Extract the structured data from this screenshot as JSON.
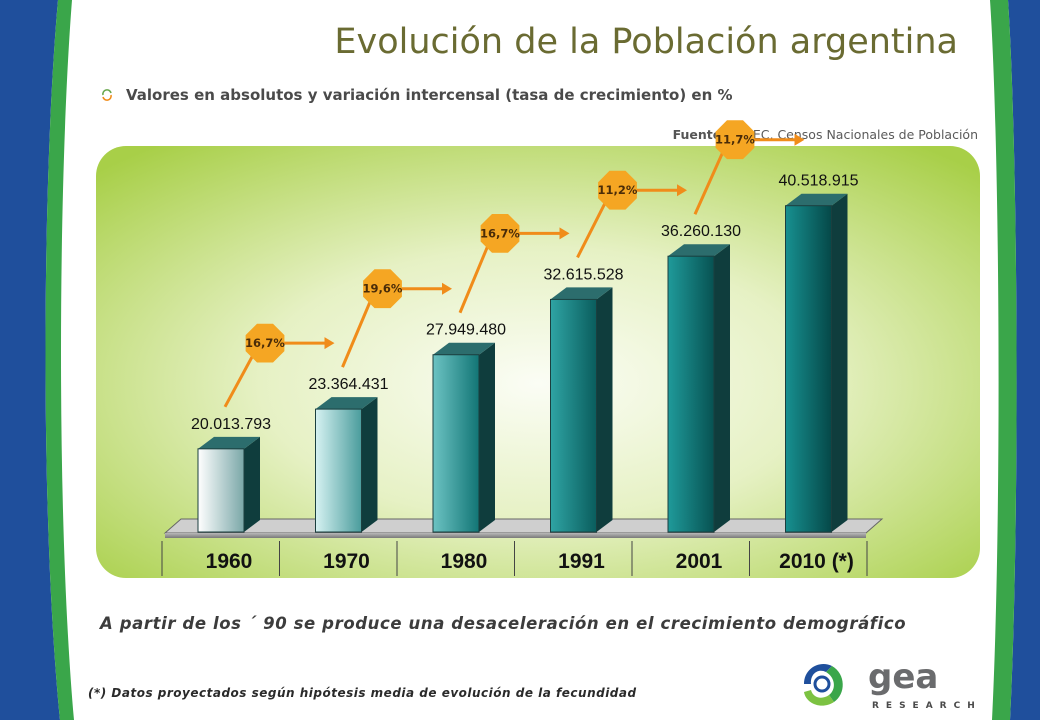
{
  "title": "Evolución de la Población argentina",
  "subtitle": "Valores en absolutos y variación intercensal (tasa de crecimiento) en %",
  "source": {
    "prefix": "Fuente:",
    "text": "INDEC, Censos Nacionales de Población"
  },
  "conclusion": "A partir de los ´ 90 se produce una desaceleración en el crecimiento demográfico",
  "footnote": "(*) Datos proyectados según hipótesis media de evolución de la fecundidad",
  "logo": {
    "name": "gea",
    "tagline": "RESEARCH"
  },
  "colors": {
    "side_blue": "#1f4f9c",
    "side_green": "#3aa64a",
    "panel_green": "#a8cf48",
    "growth_badge": "#f5a623",
    "arrow": "#f08c1a",
    "title": "#6a6b32"
  },
  "chart_data": {
    "type": "bar",
    "categories": [
      "1960",
      "1970",
      "1980",
      "1991",
      "2001",
      "2010 (*)"
    ],
    "values": [
      20013793,
      23364431,
      27949480,
      32615528,
      36260130,
      40518915
    ],
    "value_labels": [
      "20.013.793",
      "23.364.431",
      "27.949.480",
      "32.615.528",
      "36.260.130",
      "40.518.915"
    ],
    "growth_rates": [
      "16,7%",
      "19,6%",
      "16,7%",
      "11,2%",
      "11,7%"
    ],
    "ylim": [
      13000000,
      41000000
    ],
    "grid": false,
    "legend": "none"
  }
}
